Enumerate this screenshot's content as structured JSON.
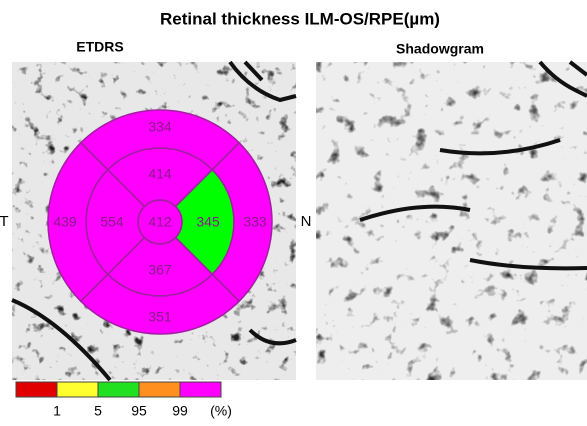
{
  "title": "Retinal thickness ILM-OS/RPE(µm)",
  "panels": [
    {
      "label": "ETDRS"
    },
    {
      "label": "Shadowgram"
    }
  ],
  "etdrs": {
    "left_label": "T",
    "right_label": "N",
    "sectors": [
      {
        "value": 412,
        "color": "#ff00ff"
      },
      {
        "value": 414,
        "color": "#ff00ff"
      },
      {
        "value": 345,
        "color": "#00ff00"
      },
      {
        "value": 367,
        "color": "#ff00ff"
      },
      {
        "value": 554,
        "color": "#ff00ff"
      },
      {
        "value": 334,
        "color": "#ff00ff"
      },
      {
        "value": 333,
        "color": "#ff00ff"
      },
      {
        "value": 351,
        "color": "#ff00ff"
      },
      {
        "value": 439,
        "color": "#ff00ff"
      }
    ]
  },
  "legend": {
    "colors": [
      "#e00000",
      "#ffff30",
      "#20e020",
      "#ff9020",
      "#ff00ff"
    ],
    "labels": [
      "1",
      "5",
      "95",
      "99",
      "(%)"
    ]
  }
}
